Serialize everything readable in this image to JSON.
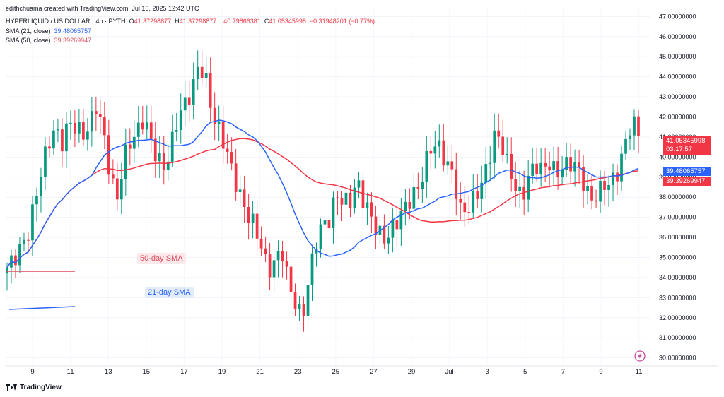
{
  "header": {
    "creator": "edithchuama created with TradingView.com, Jul 10, 2025 12:42 UTC",
    "symbol": "HYPERLIQUID / US DOLLAR · 4h · PYTH",
    "o_label": "O",
    "o_value": "41.37298877",
    "h_label": "H",
    "h_value": "41.37298877",
    "l_label": "L",
    "l_value": "40.79866381",
    "c_label": "C",
    "c_value": "41.05345998",
    "change": "−0.31948201 (−0.77%)",
    "sma21_label": "SMA (21, close)",
    "sma21_value": "39.48065757",
    "sma50_label": "SMA (50, close)",
    "sma50_value": "39.39269947"
  },
  "annotations": {
    "sma50_text": "50-day SMA",
    "sma21_text": "21-day SMA"
  },
  "price_tag": {
    "price": "41.05345998",
    "countdown": "03:17:57"
  },
  "brand": "TradingView",
  "colors": {
    "up": "#089981",
    "down": "#f23645",
    "sma21": "#2962ff",
    "sma50": "#f23645",
    "axis_text": "#131722"
  },
  "chart_data": {
    "type": "candlestick",
    "timeframe": "4h",
    "y_ticks": [
      "30.00000000",
      "31.00000000",
      "32.00000000",
      "33.00000000",
      "34.00000000",
      "35.00000000",
      "36.00000000",
      "37.00000000",
      "38.00000000",
      "39.00000000",
      "40.00000000",
      "41.00000000",
      "42.00000000",
      "43.00000000",
      "44.00000000",
      "45.00000000",
      "46.00000000",
      "47.00000000"
    ],
    "y_range": [
      29.6,
      47.4
    ],
    "x_ticks": [
      "9",
      "11",
      "13",
      "15",
      "17",
      "19",
      "21",
      "23",
      "25",
      "27",
      "29",
      "Jul",
      "3",
      "5",
      "7",
      "9",
      "11"
    ],
    "last_price": 41.05345998,
    "close_path": [
      34.5,
      35.2,
      35.8,
      36.2,
      37.5,
      39.0,
      40.5,
      41.5,
      41.0,
      42.0,
      41.5,
      40.8,
      41.2,
      42.5,
      41.5,
      39.5,
      38.0,
      39.8,
      40.5,
      41.0,
      42.0,
      41.0,
      40.2,
      39.5,
      40.5,
      41.8,
      42.5,
      43.5,
      45.0,
      44.0,
      42.0,
      41.0,
      40.0,
      39.0,
      38.2,
      37.5,
      36.8,
      35.5,
      34.0,
      34.5,
      35.5,
      34.0,
      33.0,
      32.0,
      33.8,
      35.5,
      36.5,
      37.0,
      38.5,
      38.0,
      37.8,
      38.5,
      37.5,
      37.0,
      36.5,
      36.2,
      36.5,
      36.8,
      37.2,
      37.8,
      38.5,
      40.0,
      41.0,
      40.5,
      39.5,
      38.8,
      37.2,
      37.5,
      38.2,
      38.8,
      39.5,
      40.8,
      40.5,
      39.5,
      38.8,
      38.2,
      39.2,
      39.5,
      39.0,
      39.5,
      39.2,
      39.8,
      40.0,
      39.6,
      38.5,
      37.5,
      38.0,
      38.8,
      39.0,
      39.5,
      40.5,
      41.5,
      41.05
    ],
    "series": [
      {
        "name": "SMA (21, close)",
        "last": 39.48065757
      },
      {
        "name": "SMA (50, close)",
        "last": 39.39269947
      }
    ]
  }
}
